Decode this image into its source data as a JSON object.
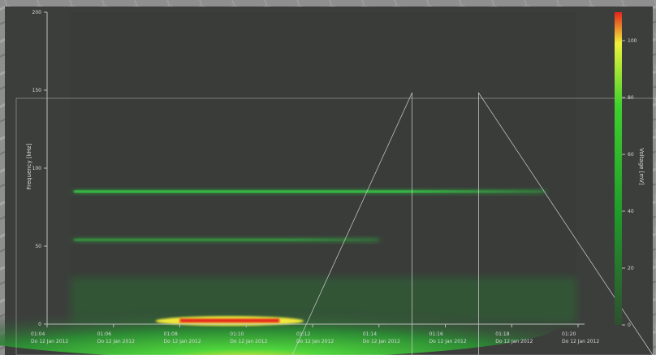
{
  "chart_data": {
    "type": "heatmap",
    "title": "",
    "ylabel": "Frequency [kHz]",
    "colorbar_label": "Voltage [mV]",
    "xlabel": "",
    "ylim": [
      0,
      200
    ],
    "colorbar_range": [
      0,
      110
    ],
    "colorbar_ticks": [
      "0",
      "20",
      "40",
      "60",
      "80",
      "100"
    ],
    "yticks": [
      "0",
      "50",
      "100",
      "150",
      "200"
    ],
    "xticks": [
      {
        "time": "01:04",
        "date": "Do 12 Jan 2012"
      },
      {
        "time": "01:06",
        "date": "Do 12 Jan 2012"
      },
      {
        "time": "01:08",
        "date": "Do 12 Jan 2012"
      },
      {
        "time": "01:10",
        "date": "Do 12 Jan 2012"
      },
      {
        "time": "01:12",
        "date": "Do 12 Jan 2012"
      },
      {
        "time": "01:14",
        "date": "Do 12 Jan 2012"
      },
      {
        "time": "01:16",
        "date": "Do 12 Jan 2012"
      },
      {
        "time": "01:18",
        "date": "Do 12 Jan 2012"
      },
      {
        "time": "01:20",
        "date": "Do 12 Jan 2012"
      }
    ],
    "colors": {
      "background": "#3b3d3b",
      "low": "#2f5d33",
      "mid": "#1ecc3a",
      "high": "#f5ee2a",
      "peak": "#e8261b"
    },
    "bands": [
      {
        "frequency_khz": 85,
        "start": "01:05",
        "end": "01:19",
        "level_mv": 75
      },
      {
        "frequency_khz": 54,
        "start": "01:05",
        "end": "01:14",
        "level_mv": 40
      }
    ],
    "hotspot": {
      "frequency_khz": 2,
      "start": "01:08",
      "end": "01:11",
      "level_mv": 110
    },
    "zoom_marker_times": [
      "01:15",
      "01:17"
    ]
  }
}
